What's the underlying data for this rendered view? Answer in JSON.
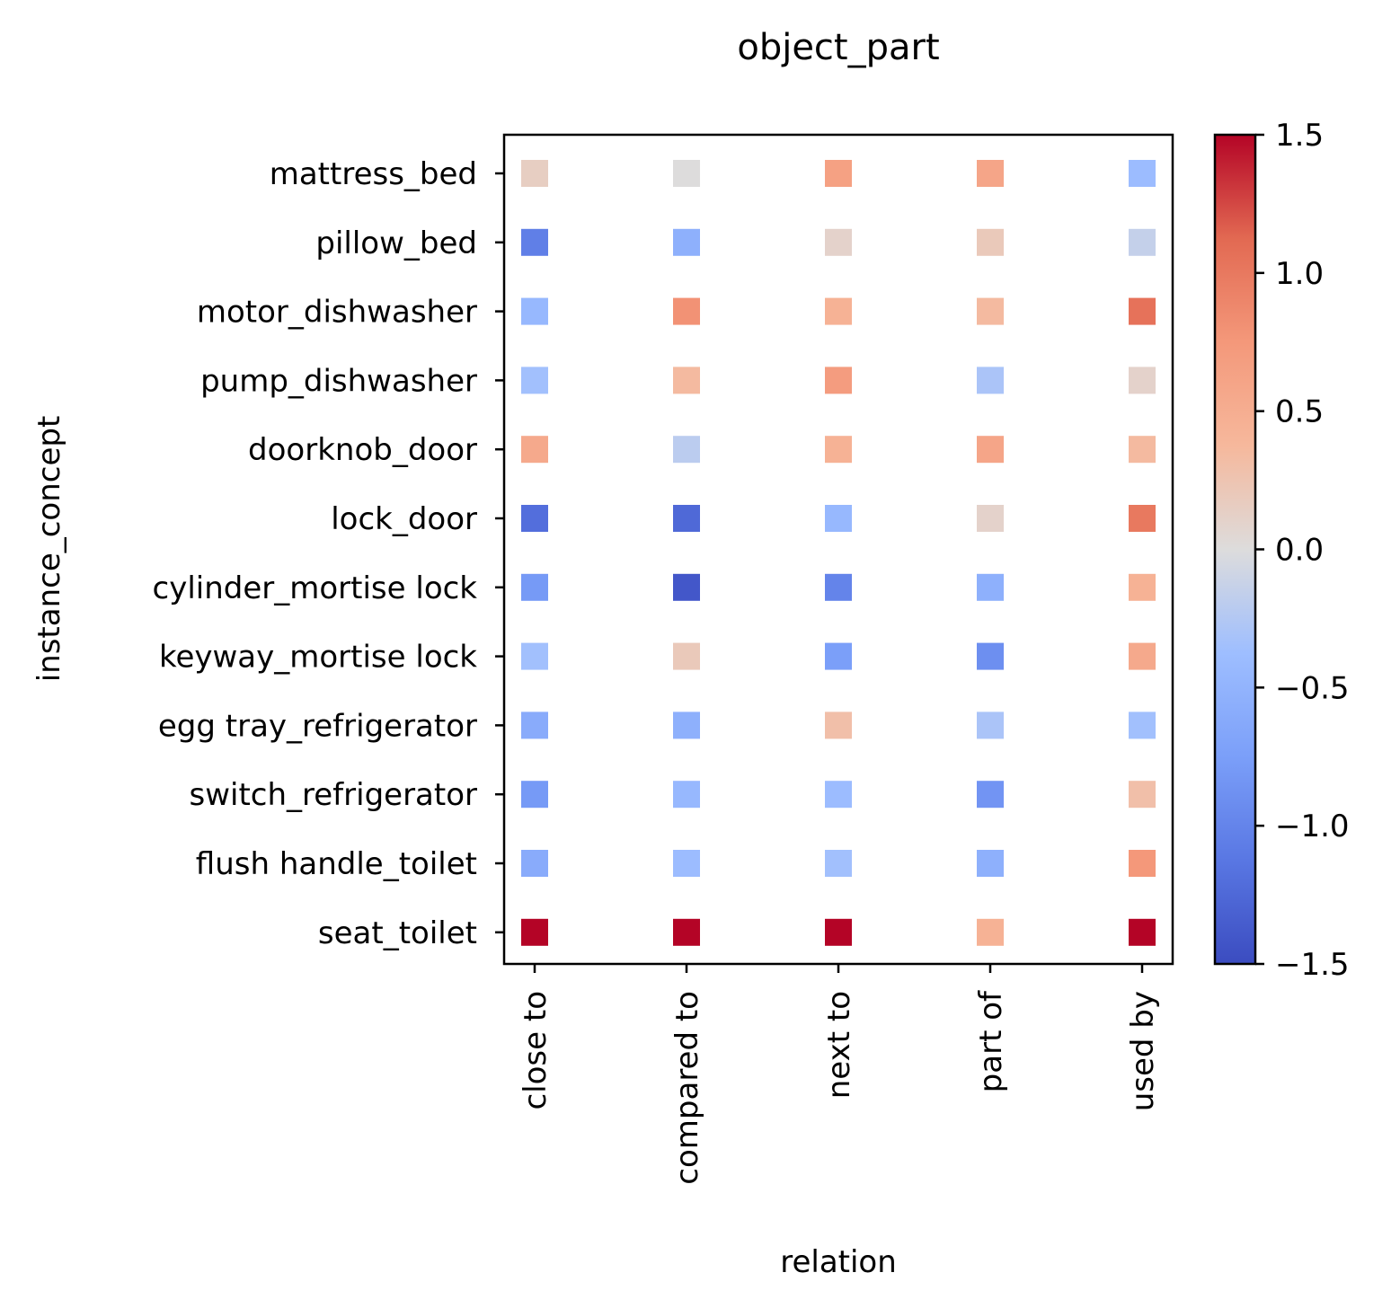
{
  "chart_data": {
    "type": "heatmap",
    "title": "object_part",
    "xlabel": "relation",
    "ylabel": "instance_concept",
    "x_categories": [
      "close to",
      "compared to",
      "next to",
      "part of",
      "used by"
    ],
    "y_categories": [
      "mattress_bed",
      "pillow_bed",
      "motor_dishwasher",
      "pump_dishwasher",
      "doorknob_door",
      "lock_door",
      "cylinder_mortise lock",
      "keyway_mortise lock",
      "egg tray_refrigerator",
      "switch_refrigerator",
      "flush handle_toilet",
      "seat_toilet"
    ],
    "values": [
      [
        0.15,
        0.0,
        0.65,
        0.6,
        -0.4
      ],
      [
        -1.05,
        -0.55,
        0.1,
        0.2,
        -0.15
      ],
      [
        -0.45,
        0.8,
        0.45,
        0.35,
        1.05
      ],
      [
        -0.35,
        0.35,
        0.7,
        -0.3,
        0.1
      ],
      [
        0.55,
        -0.2,
        0.45,
        0.6,
        0.35
      ],
      [
        -1.2,
        -1.25,
        -0.45,
        0.1,
        1.0
      ],
      [
        -0.8,
        -1.4,
        -1.0,
        -0.55,
        0.45
      ],
      [
        -0.35,
        0.2,
        -0.75,
        -0.9,
        0.55
      ],
      [
        -0.6,
        -0.55,
        0.3,
        -0.3,
        -0.35
      ],
      [
        -0.8,
        -0.45,
        -0.4,
        -0.85,
        0.3
      ],
      [
        -0.6,
        -0.4,
        -0.35,
        -0.55,
        0.75
      ],
      [
        1.5,
        1.5,
        1.5,
        0.45,
        1.5
      ]
    ],
    "colorbar": {
      "colormap": "coolwarm",
      "vmin": -1.5,
      "vmax": 1.5,
      "ticks": [
        1.5,
        1.0,
        0.5,
        0.0,
        -0.5,
        -1.0,
        -1.5
      ],
      "tick_labels": [
        "1.5",
        "1.0",
        "0.5",
        "0.0",
        "−0.5",
        "−1.0",
        "−1.5"
      ]
    },
    "grid": false,
    "legend": "none"
  }
}
